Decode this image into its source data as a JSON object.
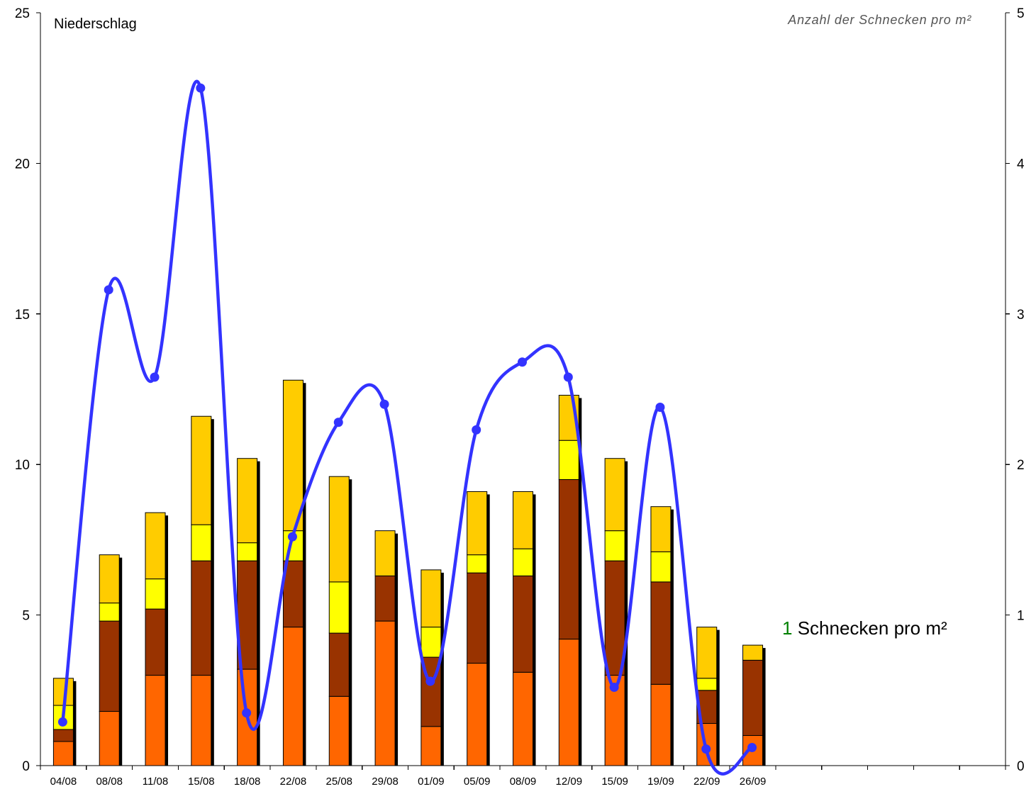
{
  "chart_data": {
    "type": "bar",
    "stacked": true,
    "categories": [
      "04/08",
      "08/08",
      "11/08",
      "15/08",
      "18/08",
      "22/08",
      "25/08",
      "29/08",
      "01/09",
      "05/09",
      "08/09",
      "12/09",
      "15/09",
      "19/09",
      "22/09",
      "26/09"
    ],
    "left_axis": {
      "label": "Niederschlag",
      "ylim": [
        0,
        25
      ],
      "ticks": [
        0,
        5,
        10,
        15,
        20,
        25
      ]
    },
    "right_axis": {
      "label": "Anzahl der Schnecken pro m²",
      "ylim": [
        0,
        5
      ],
      "ticks": [
        0,
        1,
        2,
        3,
        4,
        5
      ]
    },
    "series": [
      {
        "type": "bar",
        "axis": "left",
        "color": "#FF6600",
        "values": [
          0.8,
          1.8,
          3.0,
          3.0,
          3.2,
          4.6,
          2.3,
          4.8,
          1.3,
          3.4,
          3.1,
          4.2,
          3.0,
          2.7,
          1.4,
          1.0
        ]
      },
      {
        "type": "bar",
        "axis": "left",
        "color": "#993300",
        "values": [
          0.4,
          3.0,
          2.2,
          3.8,
          3.6,
          2.2,
          2.1,
          1.5,
          2.3,
          3.0,
          3.2,
          5.3,
          3.8,
          3.4,
          1.1,
          2.5
        ]
      },
      {
        "type": "bar",
        "axis": "left",
        "color": "#FFFF00",
        "values": [
          0.8,
          0.6,
          1.0,
          1.2,
          0.6,
          1.0,
          1.7,
          0.0,
          1.0,
          0.6,
          0.9,
          1.3,
          1.0,
          1.0,
          0.4,
          0.0
        ]
      },
      {
        "type": "bar",
        "axis": "left",
        "color": "#FFCC00",
        "values": [
          0.9,
          1.6,
          2.2,
          3.6,
          2.8,
          5.0,
          3.5,
          1.5,
          1.9,
          2.1,
          1.9,
          1.5,
          2.4,
          1.5,
          1.7,
          0.5
        ]
      },
      {
        "type": "line",
        "axis": "right",
        "color": "#3333FF",
        "smooth": true,
        "marker": "circle",
        "values": [
          0.29,
          3.16,
          2.58,
          4.5,
          0.35,
          1.52,
          2.28,
          2.4,
          0.56,
          2.23,
          2.68,
          2.58,
          0.52,
          2.38,
          0.11,
          0.12
        ]
      }
    ],
    "annotation": {
      "number": "1",
      "number_color": "#008000",
      "text": "Schnecken pro m²"
    },
    "grid": false,
    "legend": "none"
  }
}
